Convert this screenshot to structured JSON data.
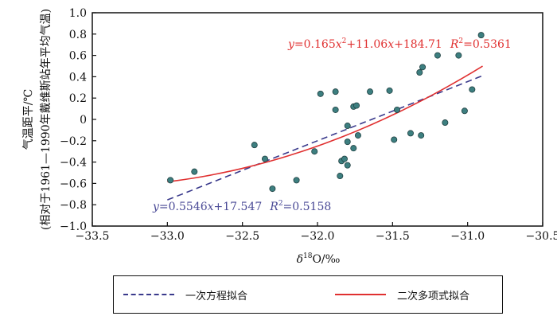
{
  "chart_data": {
    "type": "scatter",
    "title": "",
    "xlabel": "δ18O/‰",
    "xlabel_parts": {
      "delta": "δ",
      "sup": "18",
      "rest": "O/‰"
    },
    "ylabel": "气温距平/℃",
    "ylabel2": "(相对于1961—1990年戴维斯站年平均气温)",
    "xlim": [
      -33.5,
      -30.5
    ],
    "ylim": [
      -1.0,
      1.0
    ],
    "x_ticks": [
      -33.5,
      -33.0,
      -32.5,
      -32.0,
      -31.5,
      -31.0,
      -30.5
    ],
    "x_tick_labels": [
      "−33.5",
      "−33.0",
      "−32.5",
      "−32.0",
      "−31.5",
      "−31.0",
      "−30.5"
    ],
    "y_ticks": [
      1.0,
      0.8,
      0.6,
      0.4,
      0.2,
      0,
      -0.2,
      -0.4,
      -0.6,
      -0.8,
      -1.0
    ],
    "y_tick_labels": [
      "1.0",
      "0.8",
      "0.6",
      "0.4",
      "0.2",
      "0",
      "−0.2",
      "−0.4",
      "−0.6",
      "−0.8",
      "−1.0"
    ],
    "grid": false,
    "points": [
      {
        "x": -32.98,
        "y": -0.57
      },
      {
        "x": -32.82,
        "y": -0.49
      },
      {
        "x": -32.42,
        "y": -0.24
      },
      {
        "x": -32.35,
        "y": -0.37
      },
      {
        "x": -32.3,
        "y": -0.65
      },
      {
        "x": -32.14,
        "y": -0.57
      },
      {
        "x": -32.02,
        "y": -0.3
      },
      {
        "x": -31.98,
        "y": 0.24
      },
      {
        "x": -31.88,
        "y": 0.26
      },
      {
        "x": -31.88,
        "y": 0.09
      },
      {
        "x": -31.85,
        "y": -0.53
      },
      {
        "x": -31.84,
        "y": -0.39
      },
      {
        "x": -31.82,
        "y": -0.37
      },
      {
        "x": -31.8,
        "y": -0.43
      },
      {
        "x": -31.8,
        "y": -0.21
      },
      {
        "x": -31.8,
        "y": -0.06
      },
      {
        "x": -31.76,
        "y": -0.27
      },
      {
        "x": -31.76,
        "y": 0.12
      },
      {
        "x": -31.74,
        "y": 0.13
      },
      {
        "x": -31.73,
        "y": -0.15
      },
      {
        "x": -31.65,
        "y": 0.26
      },
      {
        "x": -31.52,
        "y": 0.27
      },
      {
        "x": -31.49,
        "y": -0.19
      },
      {
        "x": -31.47,
        "y": 0.09
      },
      {
        "x": -31.38,
        "y": -0.13
      },
      {
        "x": -31.32,
        "y": 0.44
      },
      {
        "x": -31.3,
        "y": 0.49
      },
      {
        "x": -31.31,
        "y": -0.15
      },
      {
        "x": -31.2,
        "y": 0.6
      },
      {
        "x": -31.15,
        "y": -0.03
      },
      {
        "x": -31.06,
        "y": 0.6
      },
      {
        "x": -31.02,
        "y": 0.08
      },
      {
        "x": -30.97,
        "y": 0.28
      },
      {
        "x": -30.91,
        "y": 0.79
      }
    ],
    "series": [
      {
        "name": "一次方程拟合",
        "type": "linear",
        "slope": 0.5546,
        "intercept": 17.547,
        "x_range": [
          -33.0,
          -30.9
        ],
        "color": "#3a3a8c",
        "dash": "8,5"
      },
      {
        "name": "二次多项式拟合",
        "type": "quadratic",
        "a": 0.165,
        "b": 11.06,
        "c": 184.71,
        "x_range": [
          -33.0,
          -30.9
        ],
        "color": "#e03030",
        "dash": ""
      }
    ],
    "annotations": {
      "quad": {
        "y": "y",
        "eq": "=0.165",
        "x": "x",
        "sup": "2",
        "eq2": "+11.06",
        "x2": "x",
        "eq3": "+184.71",
        "r": "R",
        "rsup": "2",
        "rval": "=0.5361"
      },
      "linear": {
        "y": "y",
        "eq": "=0.5546",
        "x": "x",
        "eq2": "+17.547",
        "r": "R",
        "rsup": "2",
        "rval": "=0.5158"
      }
    },
    "legend_position": "bottom"
  },
  "colors": {
    "point_fill": "#3d7f80",
    "point_stroke": "#1f3f40",
    "axis": "#111111",
    "quad": "#e03030",
    "linear": "#4a4a96"
  }
}
